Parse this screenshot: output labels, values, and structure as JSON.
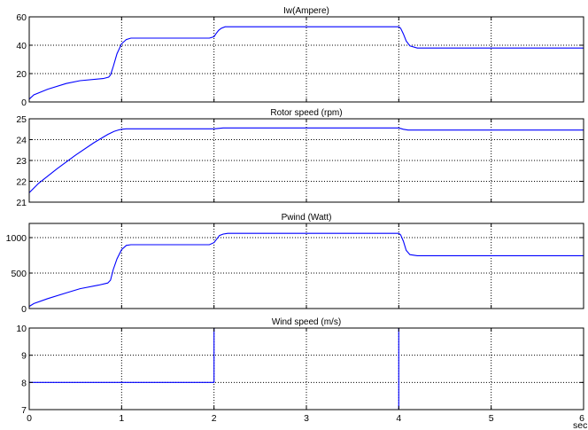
{
  "chart_data": [
    {
      "type": "line",
      "title": "Iw(Ampere)",
      "xlim": [
        0,
        6
      ],
      "ylim": [
        0,
        60
      ],
      "xticks": [
        0,
        1,
        2,
        3,
        4,
        5,
        6
      ],
      "yticks": [
        0,
        20,
        40,
        60
      ],
      "grid": true,
      "color": "#0000ff",
      "series": [
        {
          "x": [
            0,
            0.05,
            0.2,
            0.4,
            0.55,
            0.8,
            0.86,
            0.88,
            0.91,
            0.95,
            1.0,
            1.05,
            1.1,
            1.3,
            1.6,
            1.95,
            2.0,
            2.02,
            2.05,
            2.08,
            2.12,
            2.5,
            3.0,
            3.5,
            4.0,
            4.02,
            4.05,
            4.08,
            4.12,
            4.2,
            5.0,
            6.0
          ],
          "y": [
            2,
            5,
            9,
            13,
            15,
            16.5,
            17.5,
            19,
            25,
            34,
            41,
            44,
            45,
            45,
            45,
            45,
            46,
            48,
            50.5,
            52,
            53,
            53,
            53,
            53,
            53,
            52,
            48,
            43,
            39.5,
            38,
            38,
            38
          ]
        }
      ]
    },
    {
      "type": "line",
      "title": "Rotor speed (rpm)",
      "xlim": [
        0,
        6
      ],
      "ylim": [
        21,
        25
      ],
      "xticks": [
        0,
        1,
        2,
        3,
        4,
        5,
        6
      ],
      "yticks": [
        21,
        22,
        23,
        24,
        25
      ],
      "grid": true,
      "color": "#0000ff",
      "series": [
        {
          "x": [
            0,
            0.1,
            0.3,
            0.5,
            0.7,
            0.85,
            0.92,
            0.97,
            1.0,
            1.05,
            1.2,
            1.6,
            2.0,
            2.1,
            2.5,
            3.0,
            3.5,
            4.0,
            4.05,
            4.1,
            5.0,
            6.0
          ],
          "y": [
            21.45,
            21.9,
            22.6,
            23.25,
            23.85,
            24.25,
            24.4,
            24.47,
            24.5,
            24.52,
            24.52,
            24.52,
            24.52,
            24.56,
            24.56,
            24.56,
            24.56,
            24.56,
            24.5,
            24.46,
            24.46,
            24.46
          ]
        }
      ]
    },
    {
      "type": "line",
      "title": "Pwind (Watt)",
      "xlim": [
        0,
        6
      ],
      "ylim": [
        0,
        1200
      ],
      "xticks": [
        0,
        1,
        2,
        3,
        4,
        5,
        6
      ],
      "yticks": [
        0,
        500,
        1000
      ],
      "grid": true,
      "color": "#0000ff",
      "series": [
        {
          "x": [
            0,
            0.05,
            0.2,
            0.4,
            0.55,
            0.75,
            0.85,
            0.88,
            0.91,
            0.95,
            1.0,
            1.05,
            1.1,
            1.3,
            1.6,
            1.95,
            2.0,
            2.03,
            2.06,
            2.1,
            2.15,
            2.5,
            3.0,
            3.5,
            4.0,
            4.02,
            4.05,
            4.08,
            4.12,
            4.2,
            5.0,
            6.0
          ],
          "y": [
            30,
            70,
            140,
            220,
            280,
            330,
            360,
            400,
            550,
            700,
            830,
            890,
            900,
            900,
            900,
            900,
            930,
            980,
            1030,
            1050,
            1060,
            1060,
            1060,
            1060,
            1060,
            1040,
            950,
            820,
            760,
            745,
            745,
            745
          ]
        }
      ]
    },
    {
      "type": "line",
      "title": "Wind speed (m/s)",
      "xlim": [
        0,
        6
      ],
      "ylim": [
        7,
        10
      ],
      "xticks": [
        0,
        1,
        2,
        3,
        4,
        5,
        6
      ],
      "xtick_labels": [
        "0",
        "1",
        "2",
        "3",
        "4",
        "5",
        "6"
      ],
      "yticks": [
        7,
        8,
        9,
        10
      ],
      "xlabel_partial": "sec",
      "grid": true,
      "color": "#0000ff",
      "series": [
        {
          "x": [
            0,
            2,
            2,
            4,
            4,
            6
          ],
          "y": [
            8,
            8,
            10,
            10,
            7,
            7
          ]
        }
      ]
    }
  ]
}
